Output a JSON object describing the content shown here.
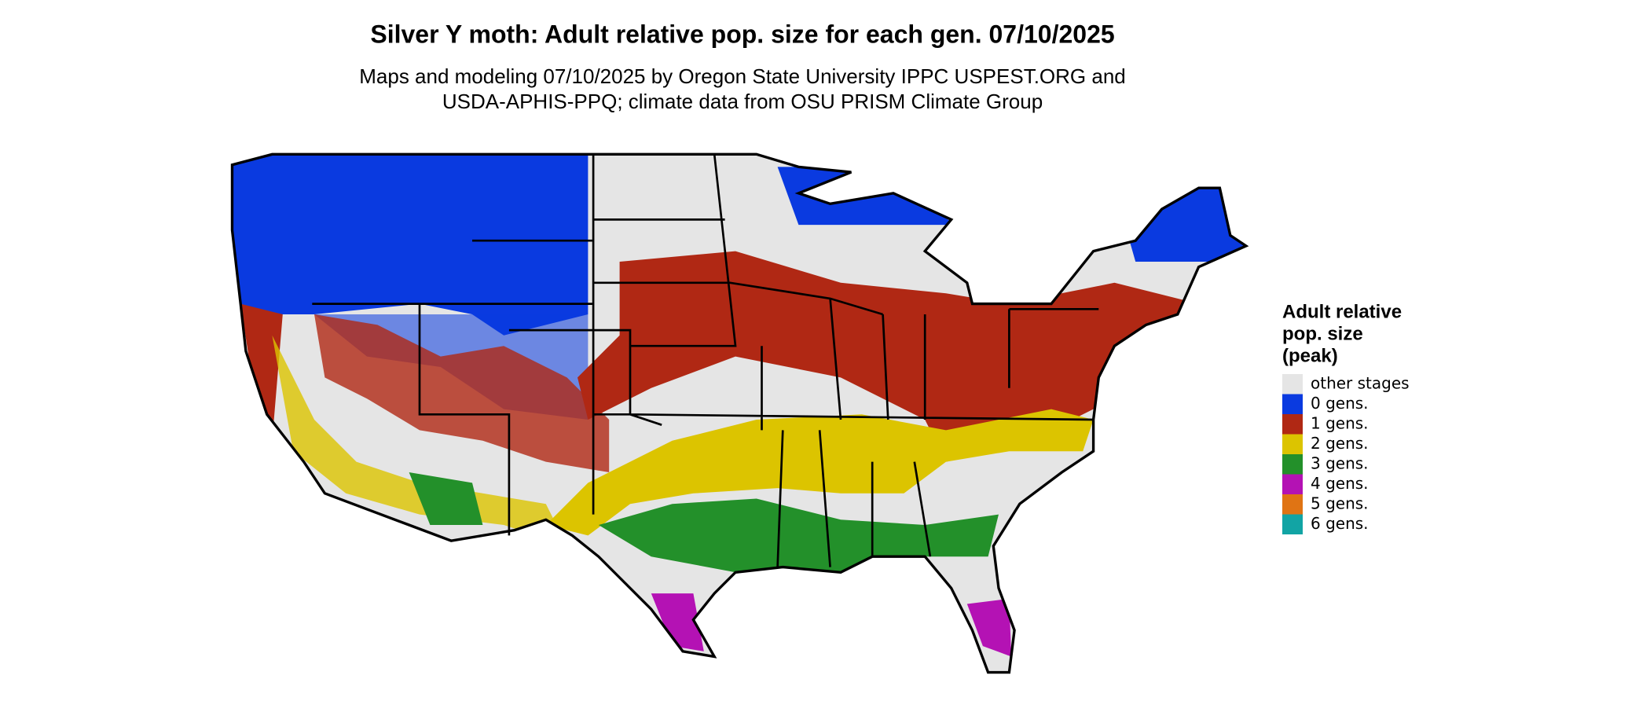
{
  "title": "Silver Y moth: Adult relative pop. size for each gen. 07/10/2025",
  "subtitle": [
    "Maps and modeling 07/10/2025 by Oregon State University IPPC USPEST.ORG and",
    "USDA-APHIS-PPQ; climate data from OSU PRISM Climate Group"
  ],
  "legend": {
    "title": [
      "Adult relative",
      "pop. size",
      "(peak)"
    ],
    "entries": [
      {
        "label": "other stages",
        "color": "#e5e5e5"
      },
      {
        "label": "0 gens.",
        "color": "#0a3ae0"
      },
      {
        "label": "1 gens.",
        "color": "#b02814"
      },
      {
        "label": "2 gens.",
        "color": "#dcc400"
      },
      {
        "label": "3 gens.",
        "color": "#23902a"
      },
      {
        "label": "4 gens.",
        "color": "#b412b4"
      },
      {
        "label": "5 gens.",
        "color": "#e07414"
      },
      {
        "label": "6 gens.",
        "color": "#12a4a4"
      }
    ]
  }
}
